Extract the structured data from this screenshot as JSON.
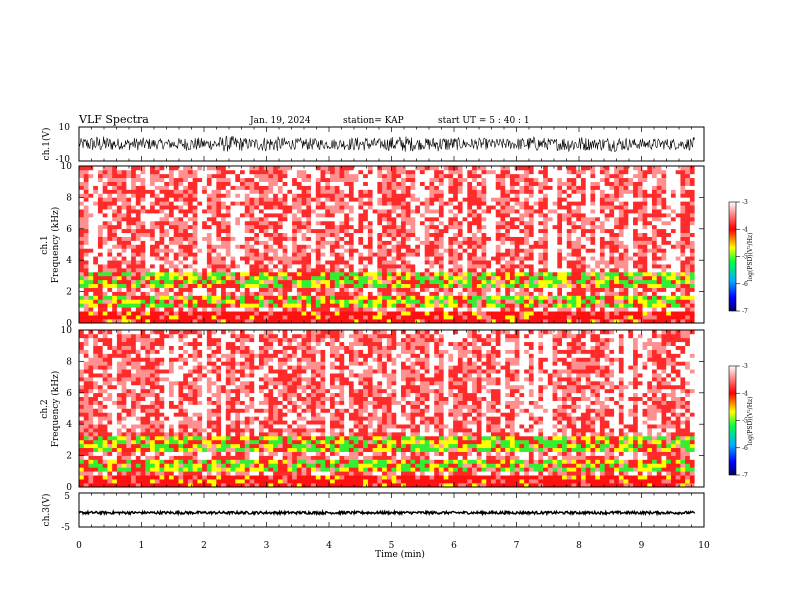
{
  "header": {
    "title": "VLF Spectra",
    "date": "Jan. 19, 2024",
    "station": "station= KAP",
    "start_time": "start  UT  =   5  : 40 : 1"
  },
  "chart_data": [
    {
      "type": "line",
      "name": "ch1-waveform",
      "ylabel": "ch.1(V)",
      "ylim": [
        -10,
        10
      ],
      "yticks": [
        "10",
        "-10"
      ],
      "xlim": [
        0,
        9.85
      ],
      "x_unit": "min",
      "amplitude_envelope_V": [
        -3.5,
        3.5
      ]
    },
    {
      "type": "heatmap",
      "name": "ch1-spectrogram",
      "ylabel": "ch.1\nFrequency (kHz)",
      "ylim": [
        0,
        10
      ],
      "yticks": [
        "0",
        "2",
        "4",
        "6",
        "8",
        "10"
      ],
      "xlim": [
        0,
        9.85
      ],
      "bands_kHz": [
        {
          "from": 0.0,
          "to": 0.8,
          "level": "high"
        },
        {
          "from": 1.0,
          "to": 1.8,
          "level": "peak"
        },
        {
          "from": 2.3,
          "to": 3.3,
          "level": "peak"
        },
        {
          "from": 3.3,
          "to": 10.0,
          "level": "medium"
        }
      ],
      "colorbar": {
        "label": "log(PSD)(V²/Hz)",
        "range": [
          -7,
          -3
        ],
        "ticks": [
          "-3",
          "-4",
          "-5",
          "-6",
          "-7"
        ]
      }
    },
    {
      "type": "heatmap",
      "name": "ch2-spectrogram",
      "ylabel": "ch.2\nFrequency (kHz)",
      "ylim": [
        0,
        10
      ],
      "yticks": [
        "0",
        "2",
        "4",
        "6",
        "8",
        "10"
      ],
      "xlim": [
        0,
        9.85
      ],
      "bands_kHz": [
        {
          "from": 0.0,
          "to": 0.8,
          "level": "high"
        },
        {
          "from": 1.0,
          "to": 1.8,
          "level": "peak"
        },
        {
          "from": 2.3,
          "to": 3.3,
          "level": "peak"
        },
        {
          "from": 3.3,
          "to": 10.0,
          "level": "medium"
        }
      ],
      "colorbar": {
        "label": "log(PSD)(V²/Hz)",
        "range": [
          -7,
          -3
        ],
        "ticks": [
          "-3",
          "-4",
          "-5",
          "-6",
          "-7"
        ]
      }
    },
    {
      "type": "line",
      "name": "ch3-waveform",
      "ylabel": "ch.3(V)",
      "ylim": [
        -5,
        5
      ],
      "yticks": [
        "5",
        "-5"
      ],
      "xlim": [
        0,
        9.85
      ],
      "amplitude_envelope_V": [
        -1.2,
        -0.4
      ]
    }
  ],
  "x_axis": {
    "label": "Time  (min)",
    "range": [
      0,
      10
    ],
    "ticks": [
      "0",
      "1",
      "2",
      "3",
      "4",
      "5",
      "6",
      "7",
      "8",
      "9",
      "10"
    ]
  },
  "colors": {
    "waveform": "#000000",
    "colormap": [
      "#000080",
      "#0000ff",
      "#00bfff",
      "#00ff66",
      "#ffff00",
      "#ff0000",
      "#ffffff"
    ]
  }
}
